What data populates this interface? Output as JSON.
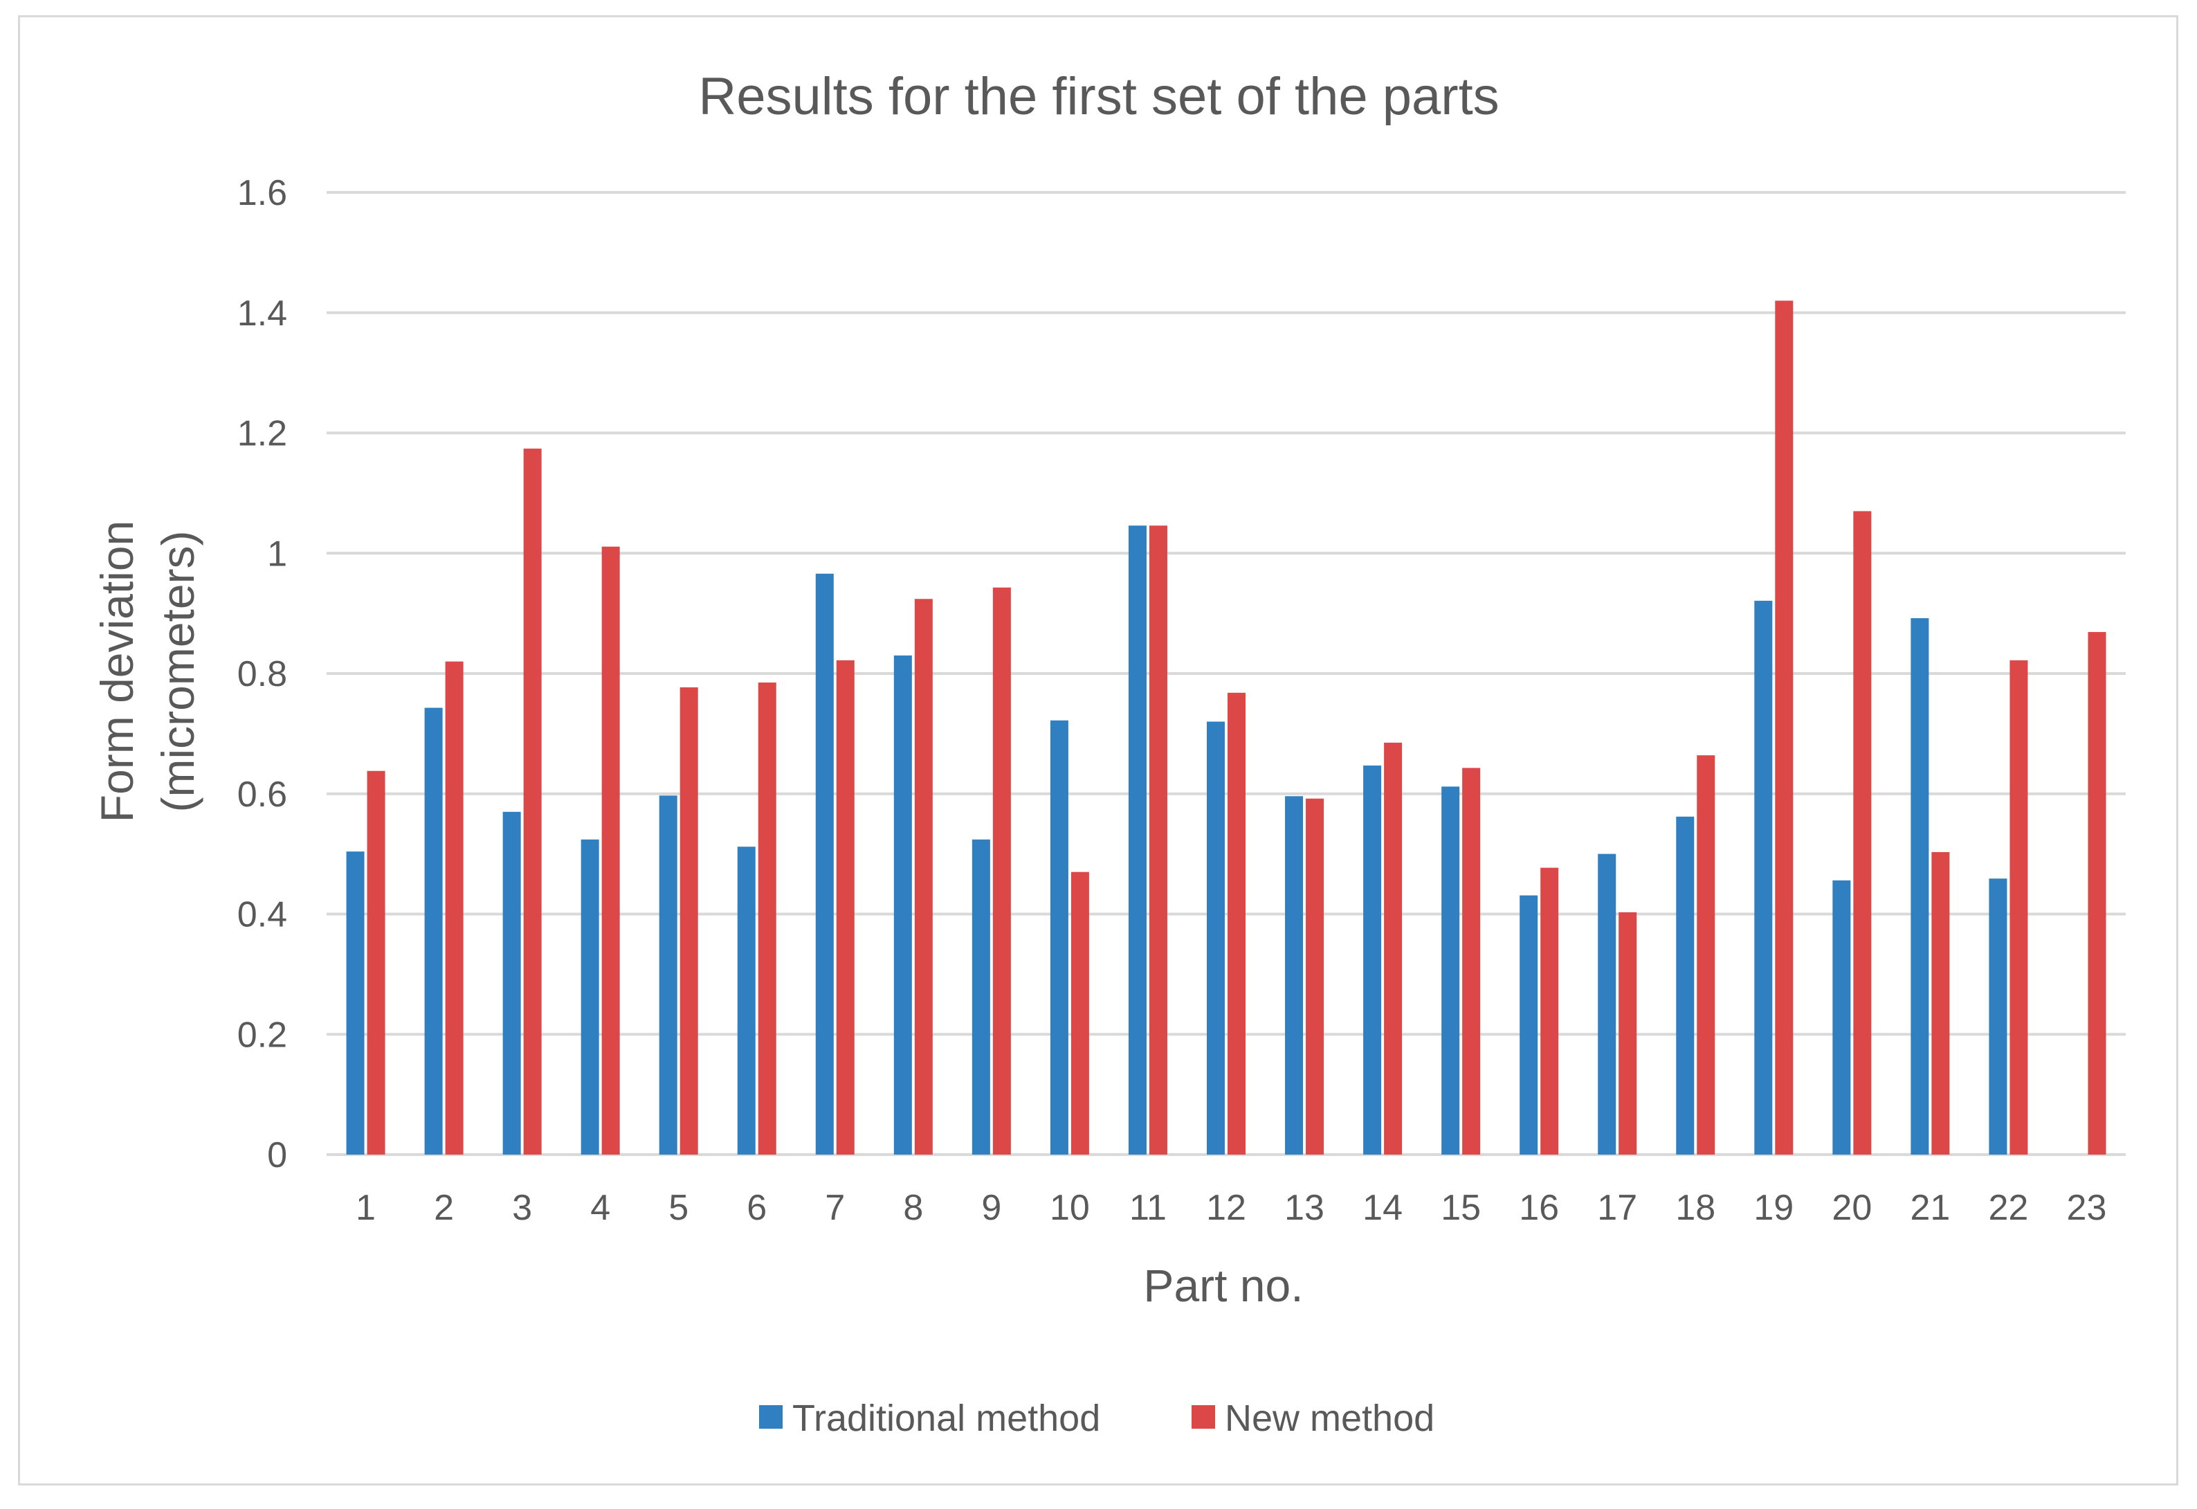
{
  "chart_data": {
    "type": "bar",
    "title": "Results for the first set of the parts",
    "xlabel": "Part no.",
    "ylabel": [
      "Form deviation",
      "(micrometers)"
    ],
    "ylim": [
      0,
      1.6
    ],
    "yticks": [
      "0",
      "0.2",
      "0.4",
      "0.6",
      "0.8",
      "1",
      "1.2",
      "1.4",
      "1.6"
    ],
    "grid": true,
    "legend_position": "bottom",
    "categories": [
      "1",
      "2",
      "3",
      "4",
      "5",
      "6",
      "7",
      "8",
      "9",
      "10",
      "11",
      "12",
      "13",
      "14",
      "15",
      "16",
      "17",
      "18",
      "19",
      "20",
      "21",
      "22",
      "23"
    ],
    "series": [
      {
        "name": "Traditional method",
        "color": "#2f7fc1",
        "values": [
          0.504,
          0.743,
          0.57,
          0.524,
          0.597,
          0.512,
          0.966,
          0.83,
          0.524,
          0.722,
          1.046,
          0.72,
          0.596,
          0.647,
          0.612,
          0.431,
          0.5,
          0.562,
          0.921,
          0.456,
          0.892,
          0.459,
          0
        ]
      },
      {
        "name": "New method",
        "color": "#dc4848",
        "values": [
          0.638,
          0.82,
          1.174,
          1.011,
          0.777,
          0.785,
          0.822,
          0.924,
          0.943,
          0.47,
          1.046,
          0.768,
          0.592,
          0.685,
          0.643,
          0.477,
          0.403,
          0.664,
          1.42,
          1.07,
          0.503,
          0.822,
          0.869
        ]
      }
    ]
  }
}
